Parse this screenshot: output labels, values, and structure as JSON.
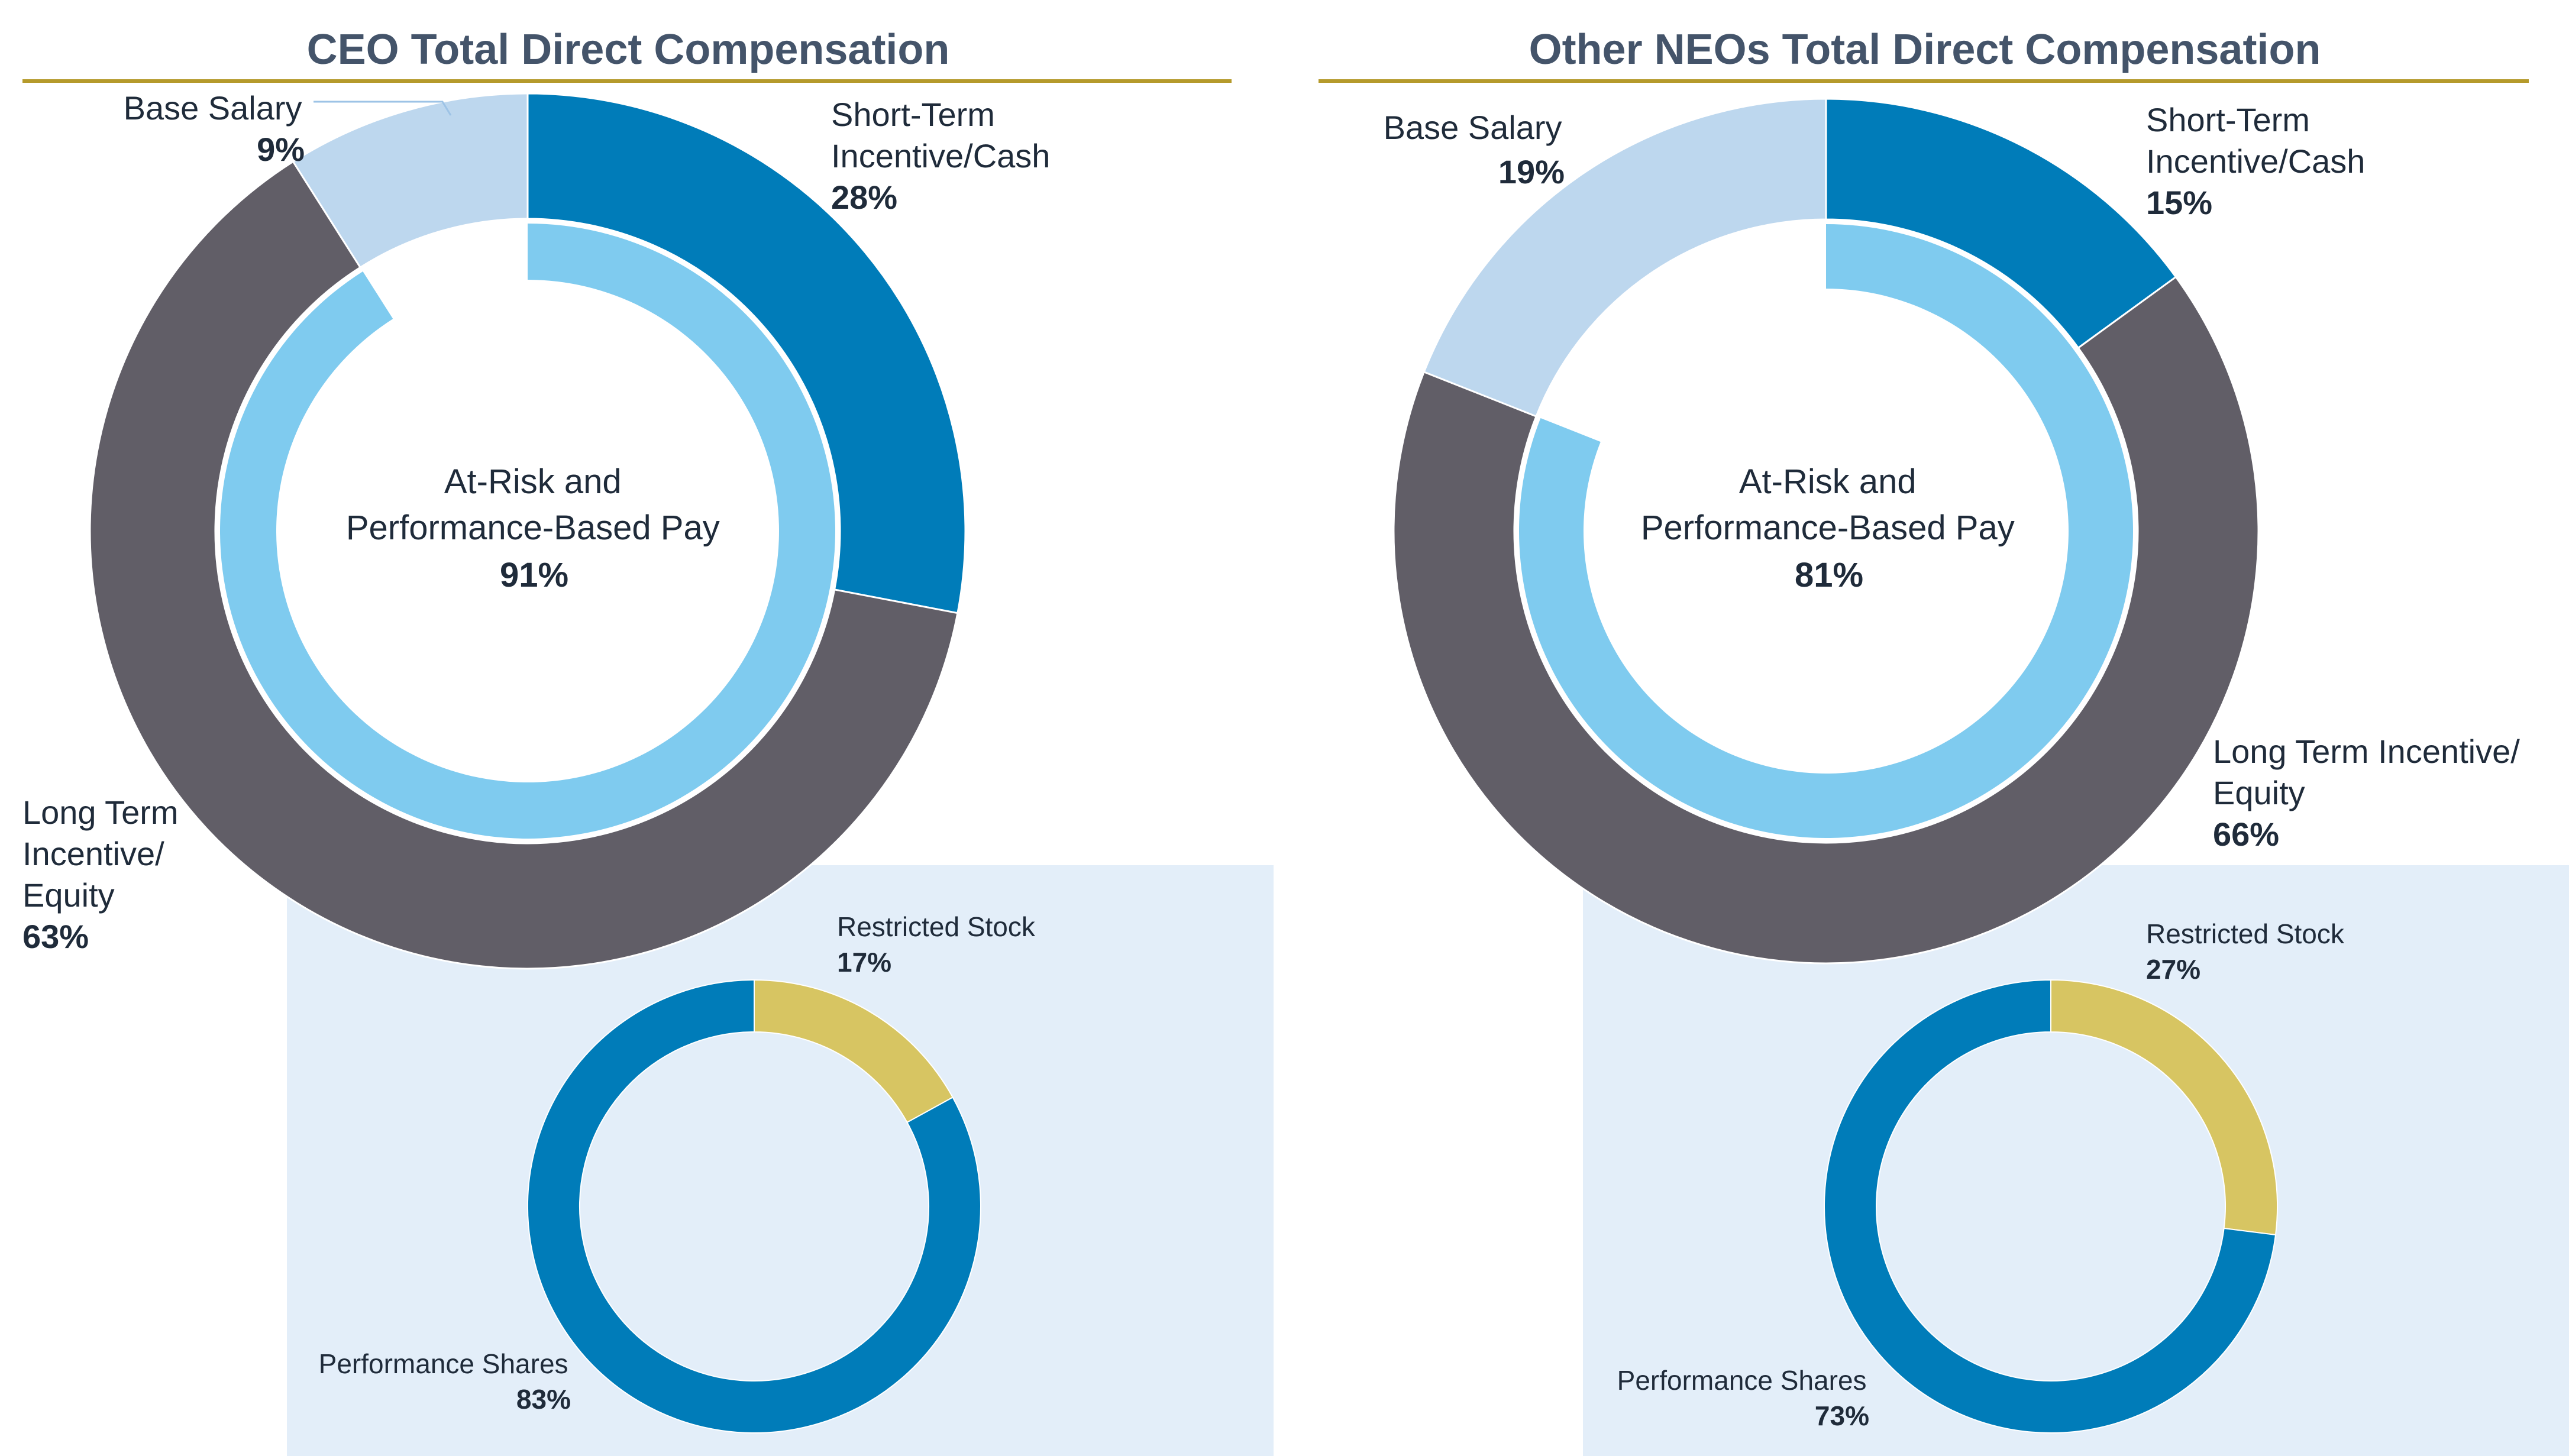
{
  "colors": {
    "short_term": "#007cb9",
    "long_term": "#615e67",
    "base_salary": "#bdd7ee",
    "at_risk": "#7fcbef",
    "restricted": "#d7c562",
    "performance": "#007cb9",
    "panel": "#e3eef9",
    "rule": "#b59a2b",
    "title": "#44546a"
  },
  "chart_data": [
    {
      "type": "pie",
      "title": "CEO Total Direct Compensation",
      "slices": [
        {
          "lines": [
            "Short-Term",
            "Incentive/Cash"
          ],
          "pct_label": "28%",
          "value": 28
        },
        {
          "lines": [
            "Long Term",
            "Incentive/",
            "Equity"
          ],
          "pct_label": "63%",
          "value": 63
        },
        {
          "lines": [
            "Base Salary"
          ],
          "pct_label": "9%",
          "value": 9
        }
      ],
      "inner": {
        "lines": [
          "At-Risk and",
          "Performance-Based Pay"
        ],
        "pct_label": "91%",
        "value": 91
      },
      "equity_breakdown": [
        {
          "label": "Restricted Stock",
          "pct_label": "17%",
          "value": 17
        },
        {
          "label": "Performance Shares",
          "pct_label": "83%",
          "value": 83
        }
      ]
    },
    {
      "type": "pie",
      "title": "Other NEOs Total Direct Compensation",
      "slices": [
        {
          "lines": [
            "Short-Term",
            "Incentive/Cash"
          ],
          "pct_label": "15%",
          "value": 15
        },
        {
          "lines": [
            "Long Term Incentive/",
            "Equity"
          ],
          "pct_label": "66%",
          "value": 66
        },
        {
          "lines": [
            "Base Salary"
          ],
          "pct_label": "19%",
          "value": 19
        }
      ],
      "inner": {
        "lines": [
          "At-Risk and",
          "Performance-Based Pay"
        ],
        "pct_label": "81%",
        "value": 81
      },
      "equity_breakdown": [
        {
          "label": "Restricted Stock",
          "pct_label": "27%",
          "value": 27
        },
        {
          "label": "Performance Shares",
          "pct_label": "73%",
          "value": 73
        }
      ]
    }
  ]
}
